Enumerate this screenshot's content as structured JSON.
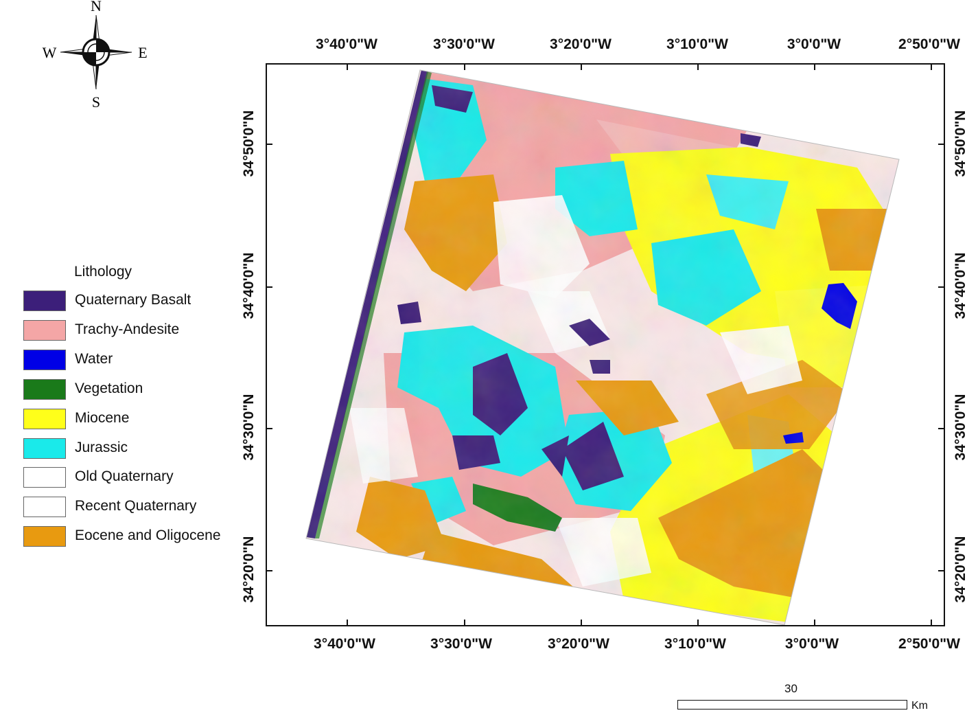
{
  "compass": {
    "north": "N",
    "south": "S",
    "east": "E",
    "west": "W"
  },
  "legend": {
    "title": "Lithology",
    "items": [
      {
        "label": "Quaternary Basalt",
        "color": "#3c1f7a"
      },
      {
        "label": "Trachy-Andesite",
        "color": "#f4a6a6"
      },
      {
        "label": "Water",
        "color": "#0000e6"
      },
      {
        "label": "Vegetation",
        "color": "#1a7a1a"
      },
      {
        "label": "Miocene",
        "color": "#ffff1a"
      },
      {
        "label": "Jurassic",
        "color": "#1aeaea"
      },
      {
        "label": "Old Quaternary",
        "color": "#ffffff"
      },
      {
        "label": "Recent Quaternary",
        "color": "#ffffff"
      },
      {
        "label": "Eocene and Oligocene",
        "color": "#e89a10"
      }
    ]
  },
  "longitude_ticks": [
    "3°40'0\"W",
    "3°30'0\"W",
    "3°20'0\"W",
    "3°10'0\"W",
    "3°0'0\"W",
    "2°50'0\"W"
  ],
  "latitude_ticks": [
    "34°50'0\"N",
    "34°40'0\"N",
    "34°30'0\"N",
    "34°20'0\"N"
  ],
  "scale": {
    "value": "30",
    "unit": "Km"
  }
}
